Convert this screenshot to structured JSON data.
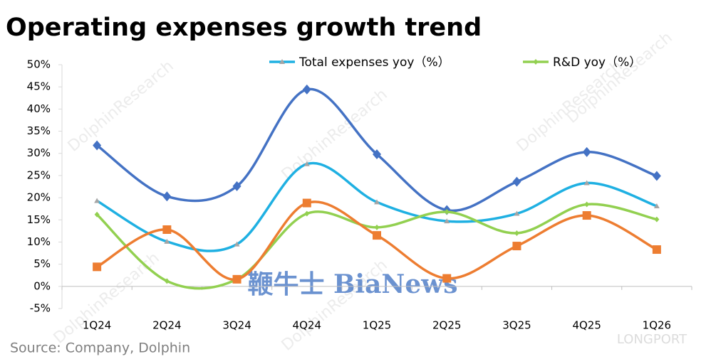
{
  "chart_data": {
    "type": "line",
    "title": "Operating expenses growth trend",
    "source": "Source: Company, Dolphin",
    "watermarks": [
      "DolphinResearch",
      "鞭牛士 BiaNews",
      "LONGPORT"
    ],
    "categories": [
      "1Q24",
      "2Q24",
      "3Q24",
      "4Q24",
      "1Q25",
      "2Q25",
      "3Q25",
      "4Q25",
      "1Q26"
    ],
    "series": [
      {
        "color": "#4472c4",
        "marker": "diamond",
        "values": [
          31.8,
          20.3,
          22.6,
          44.4,
          29.8,
          17.2,
          23.6,
          30.3,
          24.9
        ]
      },
      {
        "name": "Total expenses yoy（%）",
        "color": "#1fb0e2",
        "marker": "triangle",
        "values": [
          19.3,
          10.1,
          9.5,
          27.6,
          19.0,
          14.7,
          16.4,
          23.3,
          18.1
        ]
      },
      {
        "name": "R&D yoy（%）",
        "color": "#92d050",
        "marker": "small-diamond",
        "values": [
          16.2,
          1.2,
          1.6,
          16.4,
          13.3,
          16.8,
          12.0,
          18.5,
          15.1
        ]
      },
      {
        "color": "#ed7d31",
        "marker": "square",
        "values": [
          4.4,
          12.8,
          1.6,
          18.8,
          11.5,
          1.8,
          9.1,
          16.0,
          8.3
        ]
      }
    ],
    "ylim": [
      -5,
      50
    ],
    "yticks": [
      {
        "value": -5,
        "label": "-5%"
      },
      {
        "value": 0,
        "label": "0%"
      },
      {
        "value": 5,
        "label": "5%"
      },
      {
        "value": 10,
        "label": "10%"
      },
      {
        "value": 15,
        "label": "15%"
      },
      {
        "value": 20,
        "label": "20%"
      },
      {
        "value": 25,
        "label": "25%"
      },
      {
        "value": 30,
        "label": "30%"
      },
      {
        "value": 35,
        "label": "35%"
      },
      {
        "value": 40,
        "label": "40%"
      },
      {
        "value": 45,
        "label": "45%"
      },
      {
        "value": 50,
        "label": "50%"
      }
    ],
    "grid": false,
    "smooth": true
  }
}
